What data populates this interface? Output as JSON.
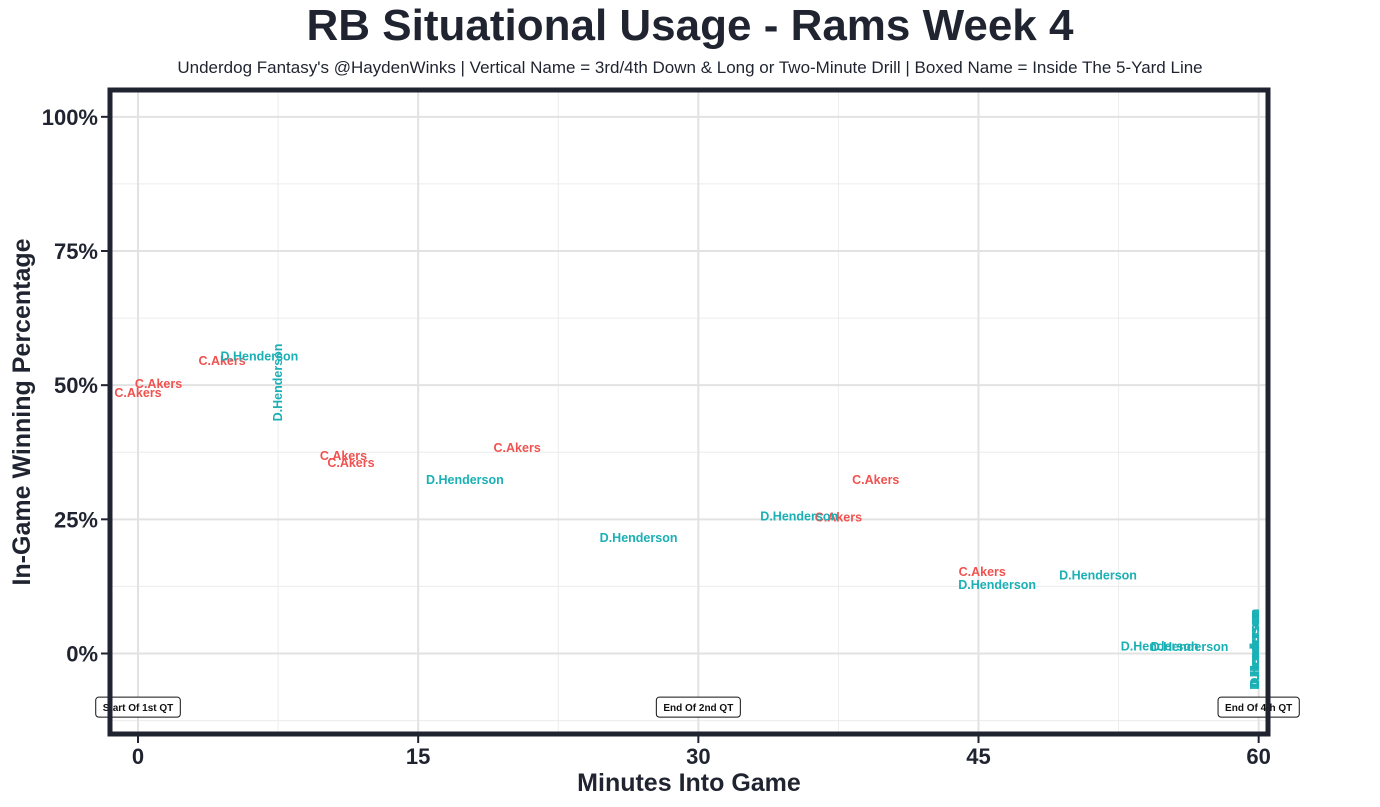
{
  "chart_data": {
    "type": "scatter",
    "title": "RB Situational Usage - Rams Week 4",
    "subtitle": "Underdog Fantasy's @HaydenWinks | Vertical Name = 3rd/4th Down & Long or Two-Minute Drill | Boxed Name = Inside The 5-Yard Line",
    "xlabel": "Minutes Into Game",
    "ylabel": "In-Game Winning Percentage",
    "xlim": [
      -1.5,
      60.5
    ],
    "ylim": [
      -15,
      105
    ],
    "x_ticks": [
      {
        "value": 0,
        "label": "0"
      },
      {
        "value": 15,
        "label": "15"
      },
      {
        "value": 30,
        "label": "30"
      },
      {
        "value": 45,
        "label": "45"
      },
      {
        "value": 60,
        "label": "60"
      }
    ],
    "y_ticks": [
      {
        "value": 0,
        "label": "0%"
      },
      {
        "value": 25,
        "label": "25%"
      },
      {
        "value": 50,
        "label": "50%"
      },
      {
        "value": 75,
        "label": "75%"
      },
      {
        "value": 100,
        "label": "100%"
      }
    ],
    "grid": true,
    "colors": {
      "C.Akers": "#f0524f",
      "D.Henderson": "#1ab0b5"
    },
    "series": [
      {
        "name": "C.Akers",
        "color": "#f0524f",
        "points": [
          {
            "x": 0,
            "y": 48.5,
            "label": "C.Akers",
            "vertical": false
          },
          {
            "x": 1.1,
            "y": 50.2,
            "label": "C.Akers",
            "vertical": false
          },
          {
            "x": 4.5,
            "y": 54.5,
            "label": "C.Akers",
            "vertical": false
          },
          {
            "x": 11,
            "y": 36.8,
            "label": "C.Akers",
            "vertical": false
          },
          {
            "x": 11.4,
            "y": 35.5,
            "label": "C.Akers",
            "vertical": false
          },
          {
            "x": 20.3,
            "y": 38.3,
            "label": "C.Akers",
            "vertical": false
          },
          {
            "x": 39.5,
            "y": 32.3,
            "label": "C.Akers",
            "vertical": false
          },
          {
            "x": 37.5,
            "y": 25.3,
            "label": "C.Akers",
            "vertical": false
          },
          {
            "x": 45.2,
            "y": 15.2,
            "label": "C.Akers",
            "vertical": false
          }
        ]
      },
      {
        "name": "D.Henderson",
        "color": "#1ab0b5",
        "points": [
          {
            "x": 6.5,
            "y": 55.3,
            "label": "D.Henderson",
            "vertical": false
          },
          {
            "x": 7.5,
            "y": 50.5,
            "label": "D.Henderson",
            "vertical": true
          },
          {
            "x": 17.5,
            "y": 32.3,
            "label": "D.Henderson",
            "vertical": false
          },
          {
            "x": 26.8,
            "y": 21.5,
            "label": "D.Henderson",
            "vertical": false
          },
          {
            "x": 35.4,
            "y": 25.5,
            "label": "D.Henderson",
            "vertical": false
          },
          {
            "x": 46,
            "y": 12.8,
            "label": "D.Henderson",
            "vertical": false
          },
          {
            "x": 51.4,
            "y": 14.5,
            "label": "D.Henderson",
            "vertical": false
          },
          {
            "x": 54.7,
            "y": 1.3,
            "label": "D.Henderson",
            "vertical": false
          },
          {
            "x": 56.3,
            "y": 1.2,
            "label": "D.Henderson",
            "vertical": false
          },
          {
            "x": 59.8,
            "y": 0.5,
            "label": "D.Henderson",
            "vertical": true
          },
          {
            "x": 59.8,
            "y": 0.8,
            "label": "D.Henderson",
            "vertical": true
          },
          {
            "x": 59.8,
            "y": 1.1,
            "label": "D.Henderson",
            "vertical": true
          }
        ]
      }
    ],
    "annotations": [
      {
        "x": 0,
        "y": -10,
        "label": "Start Of 1st QT"
      },
      {
        "x": 30,
        "y": -10,
        "label": "End Of 2nd QT"
      },
      {
        "x": 60,
        "y": -10,
        "label": "End Of 4th QT"
      }
    ]
  }
}
